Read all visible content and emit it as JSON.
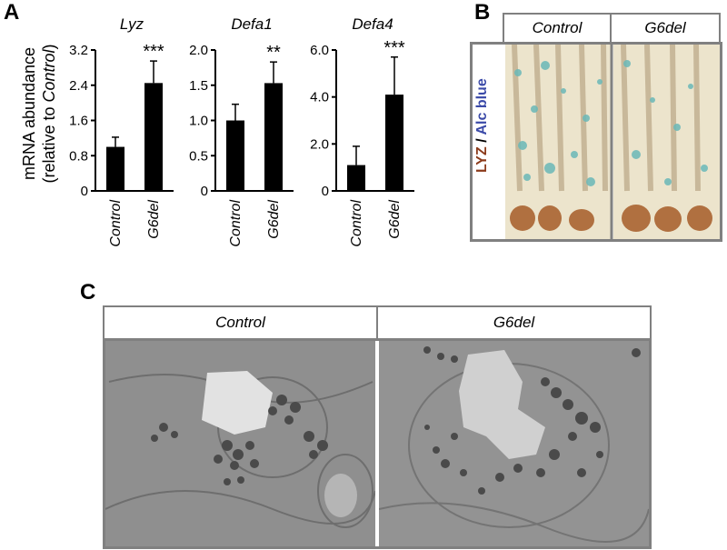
{
  "panels": {
    "a": "A",
    "b": "B",
    "c": "C"
  },
  "chart_data": [
    {
      "type": "bar",
      "title": "Lyz",
      "ylabel": "mRNA abundance (relative to Control)",
      "categories": [
        "Control",
        "G6del"
      ],
      "values": [
        1.0,
        2.45
      ],
      "errors": [
        0.22,
        0.5
      ],
      "yticks": [
        "0",
        "0.8",
        "1.6",
        "2.4",
        "3.2"
      ],
      "ylim": [
        0,
        3.2
      ],
      "significance": "***"
    },
    {
      "type": "bar",
      "title": "Defa1",
      "categories": [
        "Control",
        "G6del"
      ],
      "values": [
        1.0,
        1.53
      ],
      "errors": [
        0.23,
        0.3
      ],
      "yticks": [
        "0",
        "0.5",
        "1.0",
        "1.5",
        "2.0"
      ],
      "ylim": [
        0,
        2.0
      ],
      "significance": "**"
    },
    {
      "type": "bar",
      "title": "Defa4",
      "categories": [
        "Control",
        "G6del"
      ],
      "values": [
        1.1,
        4.1
      ],
      "errors": [
        0.8,
        1.6
      ],
      "yticks": [
        "0",
        "2.0",
        "4.0",
        "6.0"
      ],
      "ylim": [
        0,
        6.0
      ],
      "significance": "***"
    }
  ],
  "panel_b": {
    "headers": [
      "Control",
      "G6del"
    ],
    "stain_label_1": "LYZ",
    "stain_separator": " / ",
    "stain_label_2": "Alc blue",
    "stain_color_1": "#8b3a1a",
    "stain_color_2": "#3b4aa8"
  },
  "panel_c": {
    "headers": [
      "Control",
      "G6del"
    ]
  },
  "ylabel_line1": "mRNA abundance",
  "ylabel_line2_pre": "(relative to ",
  "ylabel_line2_it": "Control",
  "ylabel_line2_post": ")"
}
